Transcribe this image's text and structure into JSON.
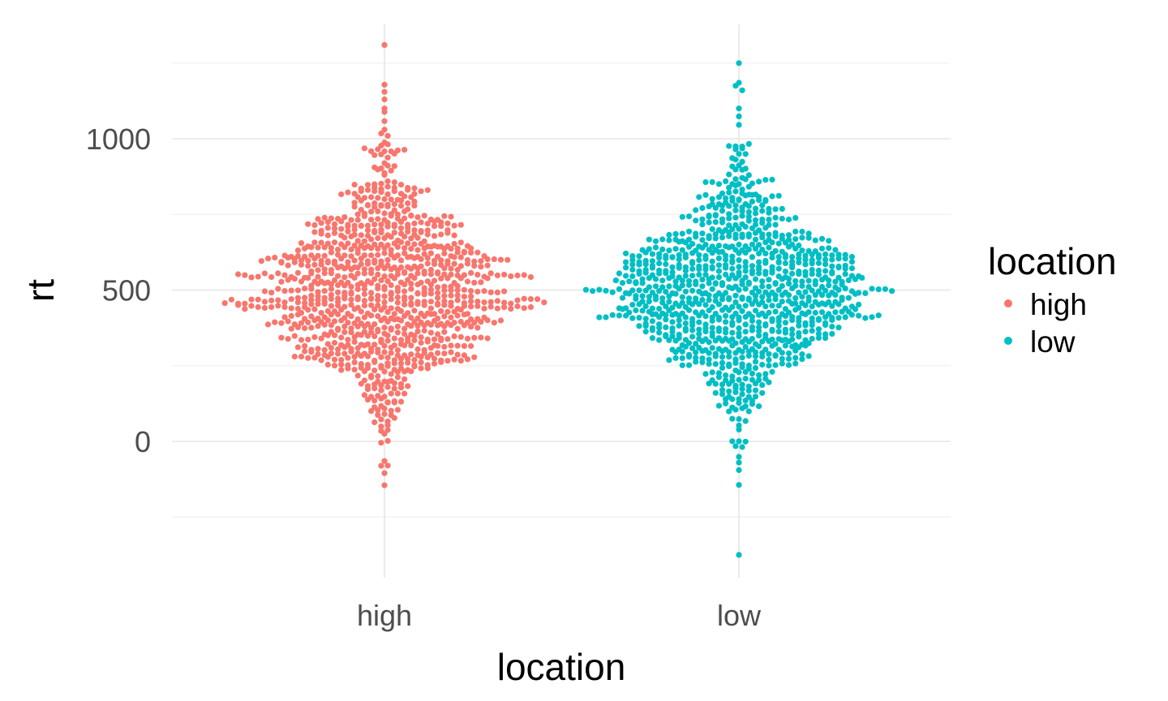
{
  "chart_data": {
    "type": "scatter",
    "subtype": "beeswarm",
    "title": "",
    "xlabel": "location",
    "ylabel": "rt",
    "categories": [
      "high",
      "low"
    ],
    "ylim": [
      -420,
      1340
    ],
    "yticks": [
      0,
      500,
      1000
    ],
    "grid": true,
    "legend": {
      "title": "location",
      "placement": "right",
      "entries": [
        "high",
        "low"
      ]
    },
    "series": [
      {
        "name": "high",
        "color": "#F8766D",
        "summary": {
          "n_approx": 1000,
          "min": -145,
          "max": 1310,
          "median": 500
        },
        "outliers": [
          1310,
          1155,
          1130,
          1100,
          1030,
          -145,
          -80,
          -65
        ]
      },
      {
        "name": "low",
        "color": "#00BFC4",
        "summary": {
          "n_approx": 1000,
          "min": -375,
          "max": 1250,
          "median": 500
        },
        "outliers": [
          1250,
          1185,
          1175,
          1160,
          1100,
          -375,
          -95,
          -70
        ]
      }
    ]
  }
}
